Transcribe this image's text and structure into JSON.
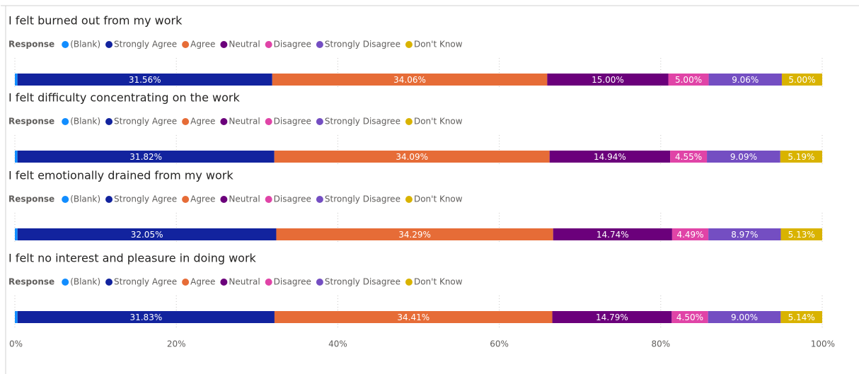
{
  "chart_data": [
    {
      "type": "bar",
      "stacked": true,
      "orientation": "horizontal",
      "title": "I felt burned out from my work",
      "legend_title": "Response",
      "xlim": [
        0,
        100
      ],
      "series": [
        {
          "name": "(Blank)",
          "color": "#118DFF",
          "values": [
            0.32
          ]
        },
        {
          "name": "Strongly Agree",
          "color": "#12239E",
          "values": [
            31.56
          ],
          "value_labels": [
            "31.56%"
          ]
        },
        {
          "name": "Agree",
          "color": "#E66C37",
          "values": [
            34.06
          ],
          "value_labels": [
            "34.06%"
          ]
        },
        {
          "name": "Neutral",
          "color": "#6B007B",
          "values": [
            15.0
          ],
          "value_labels": [
            "15.00%"
          ]
        },
        {
          "name": "Disagree",
          "color": "#E044A7",
          "values": [
            5.0
          ],
          "value_labels": [
            "5.00%"
          ]
        },
        {
          "name": "Strongly Disagree",
          "color": "#744EC2",
          "values": [
            9.06
          ],
          "value_labels": [
            "9.06%"
          ]
        },
        {
          "name": "Don't Know",
          "color": "#D9B300",
          "values": [
            5.0
          ],
          "value_labels": [
            "5.00%"
          ]
        }
      ]
    },
    {
      "type": "bar",
      "stacked": true,
      "orientation": "horizontal",
      "title": "I felt difficulty concentrating on the work",
      "legend_title": "Response",
      "xlim": [
        0,
        100
      ],
      "series": [
        {
          "name": "(Blank)",
          "color": "#118DFF",
          "values": [
            0.32
          ]
        },
        {
          "name": "Strongly Agree",
          "color": "#12239E",
          "values": [
            31.82
          ],
          "value_labels": [
            "31.82%"
          ]
        },
        {
          "name": "Agree",
          "color": "#E66C37",
          "values": [
            34.09
          ],
          "value_labels": [
            "34.09%"
          ]
        },
        {
          "name": "Neutral",
          "color": "#6B007B",
          "values": [
            14.94
          ],
          "value_labels": [
            "14.94%"
          ]
        },
        {
          "name": "Disagree",
          "color": "#E044A7",
          "values": [
            4.55
          ],
          "value_labels": [
            "4.55%"
          ]
        },
        {
          "name": "Strongly Disagree",
          "color": "#744EC2",
          "values": [
            9.09
          ],
          "value_labels": [
            "9.09%"
          ]
        },
        {
          "name": "Don't Know",
          "color": "#D9B300",
          "values": [
            5.19
          ],
          "value_labels": [
            "5.19%"
          ]
        }
      ]
    },
    {
      "type": "bar",
      "stacked": true,
      "orientation": "horizontal",
      "title": "I felt emotionally drained from my work",
      "legend_title": "Response",
      "xlim": [
        0,
        100
      ],
      "series": [
        {
          "name": "(Blank)",
          "color": "#118DFF",
          "values": [
            0.33
          ]
        },
        {
          "name": "Strongly Agree",
          "color": "#12239E",
          "values": [
            32.05
          ],
          "value_labels": [
            "32.05%"
          ]
        },
        {
          "name": "Agree",
          "color": "#E66C37",
          "values": [
            34.29
          ],
          "value_labels": [
            "34.29%"
          ]
        },
        {
          "name": "Neutral",
          "color": "#6B007B",
          "values": [
            14.74
          ],
          "value_labels": [
            "14.74%"
          ]
        },
        {
          "name": "Disagree",
          "color": "#E044A7",
          "values": [
            4.49
          ],
          "value_labels": [
            "4.49%"
          ]
        },
        {
          "name": "Strongly Disagree",
          "color": "#744EC2",
          "values": [
            8.97
          ],
          "value_labels": [
            "8.97%"
          ]
        },
        {
          "name": "Don't Know",
          "color": "#D9B300",
          "values": [
            5.13
          ],
          "value_labels": [
            "5.13%"
          ]
        }
      ]
    },
    {
      "type": "bar",
      "stacked": true,
      "orientation": "horizontal",
      "title": "I felt no interest and pleasure in doing work",
      "legend_title": "Response",
      "xlim": [
        0,
        100
      ],
      "xticks": [
        {
          "value": 0,
          "label": "0%"
        },
        {
          "value": 20,
          "label": "20%"
        },
        {
          "value": 40,
          "label": "40%"
        },
        {
          "value": 60,
          "label": "60%"
        },
        {
          "value": 80,
          "label": "80%"
        },
        {
          "value": 100,
          "label": "100%"
        }
      ],
      "series": [
        {
          "name": "(Blank)",
          "color": "#118DFF",
          "values": [
            0.33
          ]
        },
        {
          "name": "Strongly Agree",
          "color": "#12239E",
          "values": [
            31.83
          ],
          "value_labels": [
            "31.83%"
          ]
        },
        {
          "name": "Agree",
          "color": "#E66C37",
          "values": [
            34.41
          ],
          "value_labels": [
            "34.41%"
          ]
        },
        {
          "name": "Neutral",
          "color": "#6B007B",
          "values": [
            14.79
          ],
          "value_labels": [
            "14.79%"
          ]
        },
        {
          "name": "Disagree",
          "color": "#E044A7",
          "values": [
            4.5
          ],
          "value_labels": [
            "4.50%"
          ]
        },
        {
          "name": "Strongly Disagree",
          "color": "#744EC2",
          "values": [
            9.0
          ],
          "value_labels": [
            "9.00%"
          ]
        },
        {
          "name": "Don't Know",
          "color": "#D9B300",
          "values": [
            5.14
          ],
          "value_labels": [
            "5.14%"
          ]
        }
      ]
    }
  ]
}
